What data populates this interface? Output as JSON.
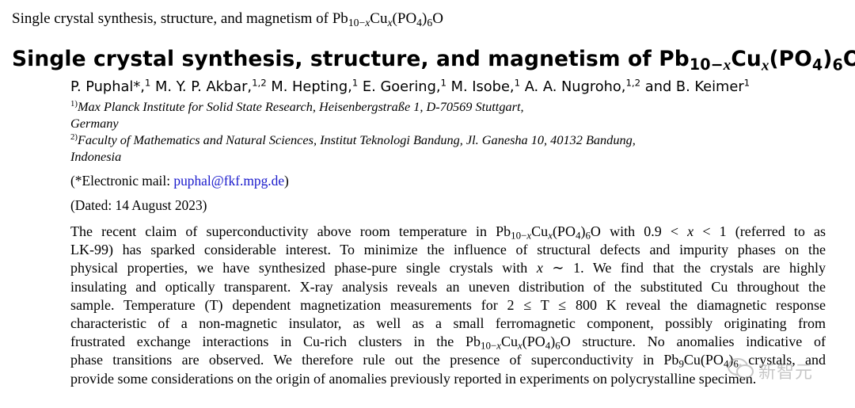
{
  "header": {
    "prefix": "Single crystal synthesis, structure, and magnetism of Pb",
    "sub1": "10−",
    "subx": "x",
    "mid": "Cu",
    "x": "x",
    "paren": "(PO",
    "sub4": "4",
    "close": ")",
    "sub6": "6",
    "end": "O"
  },
  "title": {
    "prefix": "Single crystal synthesis, structure, and magnetism of Pb",
    "sub1": "10−",
    "subx": "x",
    "mid": "Cu",
    "x": "x",
    "paren": "(PO",
    "sub4": "4",
    "close": ")",
    "sub6": "6",
    "end": "O"
  },
  "authors": [
    {
      "name": "P. Puphal*,",
      "aff": "1"
    },
    {
      "name": "M. Y. P. Akbar,",
      "aff": "1,2"
    },
    {
      "name": "M. Hepting,",
      "aff": "1"
    },
    {
      "name": "E. Goering,",
      "aff": "1"
    },
    {
      "name": "M. Isobe,",
      "aff": "1"
    },
    {
      "name": "A. A. Nugroho,",
      "aff": "1,2"
    },
    {
      "name": "and B. Keimer",
      "aff": "1"
    }
  ],
  "affiliations": [
    {
      "mark": "1)",
      "line1": "Max Planck Institute for Solid State Research, Heisenbergstraße 1, D-70569 Stuttgart,",
      "line2": "Germany"
    },
    {
      "mark": "2)",
      "line1": "Faculty of Mathematics and Natural Sciences, Institut Teknologi Bandung, Jl.  Ganesha 10, 40132 Bandung,",
      "line2": "Indonesia"
    }
  ],
  "email": {
    "prefix": "(*Electronic mail: ",
    "address": "puphal@fkf.mpg.de",
    "suffix": ")"
  },
  "dated": "(Dated: 14 August 2023)",
  "abstract": {
    "l1a": "The recent claim of superconductivity above room temperature in Pb",
    "l1b": " with 0.9 < ",
    "l1c": " < 1 (referred to as",
    "l2": "LK-99) has sparked considerable interest.  To minimize the influence of structural defects and impurity phases on the",
    "l3a": "physical properties, we have synthesized phase-pure single crystals with ",
    "l3b": " ∼ 1.  We find that the crystals are highly",
    "l4": "insulating and optically transparent. X-ray analysis reveals an uneven distribution of the substituted Cu throughout the",
    "l5": "sample. Temperature (T) dependent magnetization measurements for 2 ≤ T ≤ 800 K reveal the diamagnetic response",
    "l6": "characteristic of a non-magnetic insulator, as well as a small ferromagnetic component, possibly originating from",
    "l7a": "frustrated exchange interactions in Cu-rich clusters in the Pb",
    "l7b": " structure.  No anomalies indicative of",
    "l8a": "phase transitions are observed. We therefore rule out the presence of superconductivity in Pb",
    "l8b": "Cu(PO",
    "l8c": ") crystals, and",
    "l9": "provide some considerations on the origin of anomalies previously reported in experiments on polycrystalline specimen.",
    "x": "x",
    "T": "T"
  },
  "watermark": {
    "text": "新智元",
    "icon": "wechat-icon"
  }
}
